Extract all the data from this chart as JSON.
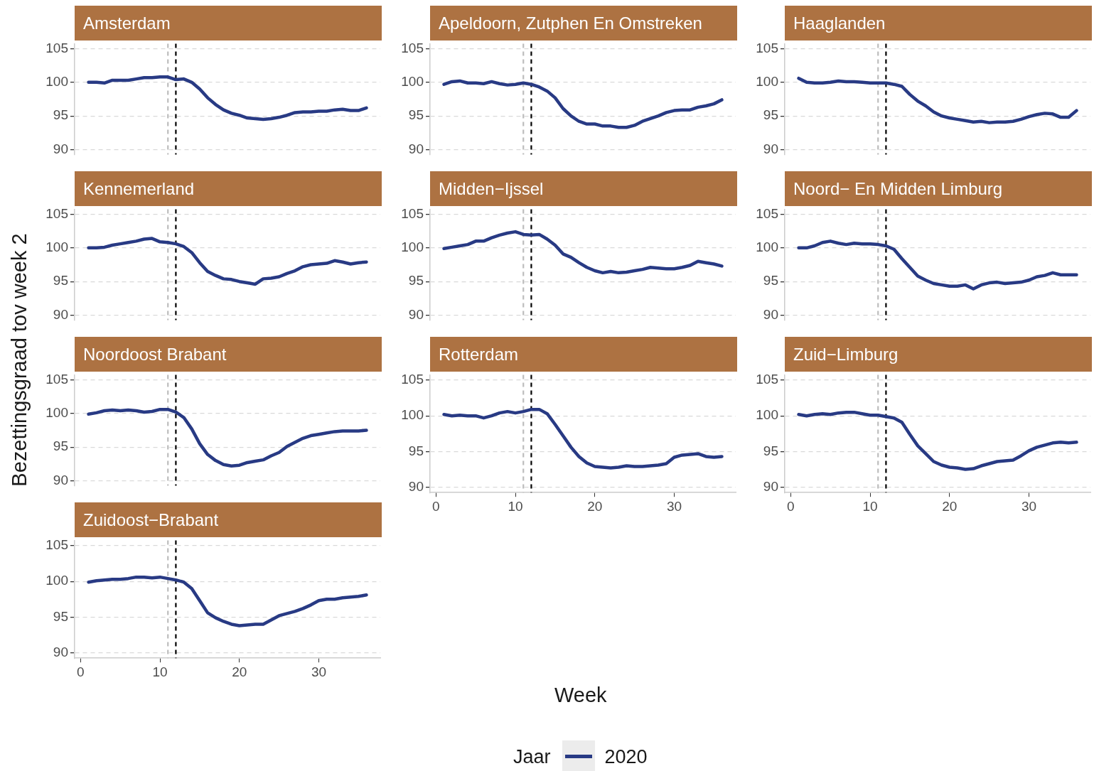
{
  "chart_data": [
    {
      "type": "line",
      "title": "Amsterdam",
      "ylabel": "Bezettingsgraad tov week 2",
      "legend_title": "Jaar",
      "legend": "bottom",
      "x": [
        1,
        2,
        3,
        4,
        5,
        6,
        7,
        8,
        9,
        10,
        11,
        12,
        13,
        14,
        15,
        16,
        17,
        18,
        19,
        20,
        21,
        22,
        23,
        24,
        25,
        26,
        27,
        28,
        29,
        30,
        31,
        32,
        33,
        34,
        35,
        36
      ],
      "xlim": [
        -0.75,
        37.75
      ],
      "xticks": [
        0,
        10,
        20,
        30
      ],
      "ylim": [
        89.25,
        105.75
      ],
      "yticks": [
        90,
        95,
        100,
        105
      ],
      "grid": "y",
      "tick_labels": "y",
      "ref_lines": [
        {
          "axis": "x",
          "value": 11,
          "color": "#bdbdbd",
          "line_style": "dashed"
        },
        {
          "axis": "x",
          "value": 12,
          "color": "#000000",
          "line_style": "dashed"
        }
      ],
      "series": [
        {
          "name": "2020",
          "color": "#283a84",
          "values": [
            100,
            100,
            99.9,
            100.3,
            100.3,
            100.3,
            100.5,
            100.7,
            100.7,
            100.8,
            100.8,
            100.4,
            100.5,
            100,
            99,
            97.7,
            96.7,
            95.9,
            95.4,
            95.1,
            94.7,
            94.6,
            94.5,
            94.6,
            94.8,
            95.1,
            95.5,
            95.6,
            95.6,
            95.7,
            95.7,
            95.9,
            96,
            95.8,
            95.8,
            96.2
          ]
        }
      ]
    },
    {
      "type": "line",
      "title": "Apeldoorn, Zutphen En Omstreken",
      "x": [
        1,
        2,
        3,
        4,
        5,
        6,
        7,
        8,
        9,
        10,
        11,
        12,
        13,
        14,
        15,
        16,
        17,
        18,
        19,
        20,
        21,
        22,
        23,
        24,
        25,
        26,
        27,
        28,
        29,
        30,
        31,
        32,
        33,
        34,
        35,
        36
      ],
      "xlim": [
        -0.75,
        37.75
      ],
      "xticks": [
        0,
        10,
        20,
        30
      ],
      "ylim": [
        89.25,
        105.75
      ],
      "yticks": [
        90,
        95,
        100,
        105
      ],
      "grid": "y",
      "tick_labels": "y",
      "ref_lines": [
        {
          "axis": "x",
          "value": 11,
          "color": "#bdbdbd",
          "line_style": "dashed"
        },
        {
          "axis": "x",
          "value": 12,
          "color": "#000000",
          "line_style": "dashed"
        }
      ],
      "series": [
        {
          "color": "#283a84",
          "values": [
            99.7,
            100.1,
            100.2,
            99.9,
            99.9,
            99.8,
            100.1,
            99.8,
            99.6,
            99.7,
            99.9,
            99.7,
            99.3,
            98.7,
            97.7,
            96.1,
            95,
            94.2,
            93.8,
            93.8,
            93.5,
            93.5,
            93.3,
            93.3,
            93.6,
            94.2,
            94.6,
            95,
            95.5,
            95.8,
            95.9,
            95.9,
            96.3,
            96.5,
            96.8,
            97.4
          ]
        }
      ]
    },
    {
      "type": "line",
      "title": "Haaglanden",
      "x": [
        1,
        2,
        3,
        4,
        5,
        6,
        7,
        8,
        9,
        10,
        11,
        12,
        13,
        14,
        15,
        16,
        17,
        18,
        19,
        20,
        21,
        22,
        23,
        24,
        25,
        26,
        27,
        28,
        29,
        30,
        31,
        32,
        33,
        34,
        35,
        36
      ],
      "xlim": [
        -0.75,
        37.75
      ],
      "xticks": [
        0,
        10,
        20,
        30
      ],
      "ylim": [
        89.25,
        105.75
      ],
      "yticks": [
        90,
        95,
        100,
        105
      ],
      "grid": "y",
      "tick_labels": "y",
      "ref_lines": [
        {
          "axis": "x",
          "value": 11,
          "color": "#bdbdbd",
          "line_style": "dashed"
        },
        {
          "axis": "x",
          "value": 12,
          "color": "#000000",
          "line_style": "dashed"
        }
      ],
      "series": [
        {
          "color": "#283a84",
          "values": [
            100.6,
            100,
            99.9,
            99.9,
            100,
            100.2,
            100.1,
            100.1,
            100,
            99.9,
            99.9,
            99.9,
            99.7,
            99.4,
            98.2,
            97.2,
            96.5,
            95.6,
            95,
            94.7,
            94.5,
            94.3,
            94.1,
            94.2,
            94,
            94.1,
            94.1,
            94.2,
            94.5,
            94.9,
            95.2,
            95.4,
            95.3,
            94.8,
            94.8,
            95.8
          ]
        }
      ]
    },
    {
      "type": "line",
      "title": "Kennemerland",
      "x": [
        1,
        2,
        3,
        4,
        5,
        6,
        7,
        8,
        9,
        10,
        11,
        12,
        13,
        14,
        15,
        16,
        17,
        18,
        19,
        20,
        21,
        22,
        23,
        24,
        25,
        26,
        27,
        28,
        29,
        30,
        31,
        32,
        33,
        34,
        35,
        36
      ],
      "xlim": [
        -0.75,
        37.75
      ],
      "xticks": [
        0,
        10,
        20,
        30
      ],
      "ylim": [
        89.25,
        105.75
      ],
      "yticks": [
        90,
        95,
        100,
        105
      ],
      "grid": "y",
      "tick_labels": "y",
      "ref_lines": [
        {
          "axis": "x",
          "value": 11,
          "color": "#bdbdbd",
          "line_style": "dashed"
        },
        {
          "axis": "x",
          "value": 12,
          "color": "#000000",
          "line_style": "dashed"
        }
      ],
      "series": [
        {
          "color": "#283a84",
          "values": [
            100,
            100,
            100.1,
            100.4,
            100.6,
            100.8,
            101,
            101.3,
            101.4,
            100.9,
            100.8,
            100.6,
            100.2,
            99.3,
            97.8,
            96.5,
            95.9,
            95.4,
            95.3,
            95,
            94.8,
            94.6,
            95.4,
            95.5,
            95.7,
            96.2,
            96.6,
            97.2,
            97.5,
            97.6,
            97.7,
            98.1,
            97.9,
            97.6,
            97.8,
            97.9
          ]
        }
      ]
    },
    {
      "type": "line",
      "title": "Midden−Ijssel",
      "x": [
        1,
        2,
        3,
        4,
        5,
        6,
        7,
        8,
        9,
        10,
        11,
        12,
        13,
        14,
        15,
        16,
        17,
        18,
        19,
        20,
        21,
        22,
        23,
        24,
        25,
        26,
        27,
        28,
        29,
        30,
        31,
        32,
        33,
        34,
        35,
        36
      ],
      "xlim": [
        -0.75,
        37.75
      ],
      "xticks": [
        0,
        10,
        20,
        30
      ],
      "ylim": [
        89.25,
        105.75
      ],
      "yticks": [
        90,
        95,
        100,
        105
      ],
      "grid": "y",
      "tick_labels": "y",
      "ref_lines": [
        {
          "axis": "x",
          "value": 11,
          "color": "#bdbdbd",
          "line_style": "dashed"
        },
        {
          "axis": "x",
          "value": 12,
          "color": "#000000",
          "line_style": "dashed"
        }
      ],
      "series": [
        {
          "color": "#283a84",
          "values": [
            99.9,
            100.1,
            100.3,
            100.5,
            101,
            101,
            101.5,
            101.9,
            102.2,
            102.4,
            102,
            101.9,
            102,
            101.3,
            100.4,
            99.1,
            98.6,
            97.8,
            97.1,
            96.6,
            96.3,
            96.5,
            96.3,
            96.4,
            96.6,
            96.8,
            97.1,
            97,
            96.9,
            96.9,
            97.1,
            97.4,
            98,
            97.8,
            97.6,
            97.3
          ]
        }
      ]
    },
    {
      "type": "line",
      "title": "Noord− En Midden Limburg",
      "x": [
        1,
        2,
        3,
        4,
        5,
        6,
        7,
        8,
        9,
        10,
        11,
        12,
        13,
        14,
        15,
        16,
        17,
        18,
        19,
        20,
        21,
        22,
        23,
        24,
        25,
        26,
        27,
        28,
        29,
        30,
        31,
        32,
        33,
        34,
        35,
        36
      ],
      "xlim": [
        -0.75,
        37.75
      ],
      "xticks": [
        0,
        10,
        20,
        30
      ],
      "ylim": [
        89.25,
        105.75
      ],
      "yticks": [
        90,
        95,
        100,
        105
      ],
      "grid": "y",
      "tick_labels": "y",
      "ref_lines": [
        {
          "axis": "x",
          "value": 11,
          "color": "#bdbdbd",
          "line_style": "dashed"
        },
        {
          "axis": "x",
          "value": 12,
          "color": "#000000",
          "line_style": "dashed"
        }
      ],
      "series": [
        {
          "color": "#283a84",
          "values": [
            100,
            100,
            100.3,
            100.8,
            101,
            100.7,
            100.5,
            100.7,
            100.6,
            100.6,
            100.5,
            100.3,
            99.8,
            98.4,
            97.1,
            95.8,
            95.2,
            94.7,
            94.5,
            94.3,
            94.3,
            94.5,
            93.9,
            94.5,
            94.8,
            94.9,
            94.7,
            94.8,
            94.9,
            95.2,
            95.7,
            95.9,
            96.3,
            96,
            96,
            96
          ]
        }
      ]
    },
    {
      "type": "line",
      "title": "Noordoost Brabant",
      "x": [
        1,
        2,
        3,
        4,
        5,
        6,
        7,
        8,
        9,
        10,
        11,
        12,
        13,
        14,
        15,
        16,
        17,
        18,
        19,
        20,
        21,
        22,
        23,
        24,
        25,
        26,
        27,
        28,
        29,
        30,
        31,
        32,
        33,
        34,
        35,
        36
      ],
      "xlim": [
        -0.75,
        37.75
      ],
      "xticks": [
        0,
        10,
        20,
        30
      ],
      "ylim": [
        89.25,
        105.75
      ],
      "yticks": [
        90,
        95,
        100,
        105
      ],
      "grid": "y",
      "tick_labels": "y",
      "ref_lines": [
        {
          "axis": "x",
          "value": 11,
          "color": "#bdbdbd",
          "line_style": "dashed"
        },
        {
          "axis": "x",
          "value": 12,
          "color": "#000000",
          "line_style": "dashed"
        }
      ],
      "series": [
        {
          "color": "#283a84",
          "values": [
            99.9,
            100.1,
            100.4,
            100.5,
            100.4,
            100.5,
            100.4,
            100.2,
            100.3,
            100.6,
            100.6,
            100.2,
            99.4,
            97.7,
            95.5,
            93.9,
            93,
            92.4,
            92.2,
            92.3,
            92.7,
            92.9,
            93.1,
            93.7,
            94.2,
            95.1,
            95.7,
            96.3,
            96.7,
            96.9,
            97.1,
            97.3,
            97.4,
            97.4,
            97.4,
            97.5
          ]
        }
      ]
    },
    {
      "type": "line",
      "title": "Rotterdam",
      "xlabel": "Week",
      "x": [
        1,
        2,
        3,
        4,
        5,
        6,
        7,
        8,
        9,
        10,
        11,
        12,
        13,
        14,
        15,
        16,
        17,
        18,
        19,
        20,
        21,
        22,
        23,
        24,
        25,
        26,
        27,
        28,
        29,
        30,
        31,
        32,
        33,
        34,
        35,
        36
      ],
      "xlim": [
        -0.75,
        37.75
      ],
      "xticks": [
        0,
        10,
        20,
        30
      ],
      "ylim": [
        89.25,
        105.75
      ],
      "yticks": [
        90,
        95,
        100,
        105
      ],
      "grid": "y",
      "ref_lines": [
        {
          "axis": "x",
          "value": 11,
          "color": "#bdbdbd",
          "line_style": "dashed"
        },
        {
          "axis": "x",
          "value": 12,
          "color": "#000000",
          "line_style": "dashed"
        }
      ],
      "series": [
        {
          "color": "#283a84",
          "values": [
            100.2,
            100,
            100.1,
            100,
            100,
            99.7,
            100,
            100.4,
            100.6,
            100.4,
            100.6,
            100.9,
            100.9,
            100.3,
            98.8,
            97.2,
            95.6,
            94.3,
            93.4,
            92.9,
            92.8,
            92.7,
            92.8,
            93,
            92.9,
            92.9,
            93,
            93.1,
            93.3,
            94.2,
            94.5,
            94.6,
            94.7,
            94.3,
            94.2,
            94.3
          ]
        }
      ]
    },
    {
      "type": "line",
      "title": "Zuid−Limburg",
      "x": [
        1,
        2,
        3,
        4,
        5,
        6,
        7,
        8,
        9,
        10,
        11,
        12,
        13,
        14,
        15,
        16,
        17,
        18,
        19,
        20,
        21,
        22,
        23,
        24,
        25,
        26,
        27,
        28,
        29,
        30,
        31,
        32,
        33,
        34,
        35,
        36
      ],
      "xlim": [
        -0.75,
        37.75
      ],
      "xticks": [
        0,
        10,
        20,
        30
      ],
      "ylim": [
        89.25,
        105.75
      ],
      "yticks": [
        90,
        95,
        100,
        105
      ],
      "grid": "y",
      "ref_lines": [
        {
          "axis": "x",
          "value": 11,
          "color": "#bdbdbd",
          "line_style": "dashed"
        },
        {
          "axis": "x",
          "value": 12,
          "color": "#000000",
          "line_style": "dashed"
        }
      ],
      "series": [
        {
          "color": "#283a84",
          "values": [
            100.2,
            100,
            100.2,
            100.3,
            100.2,
            100.4,
            100.5,
            100.5,
            100.3,
            100.1,
            100.1,
            99.9,
            99.7,
            99.1,
            97.4,
            95.8,
            94.7,
            93.6,
            93.1,
            92.8,
            92.7,
            92.5,
            92.6,
            93,
            93.3,
            93.6,
            93.7,
            93.8,
            94.4,
            95.1,
            95.6,
            95.9,
            96.2,
            96.3,
            96.2,
            96.3
          ]
        }
      ]
    },
    {
      "type": "line",
      "title": "Zuidoost−Brabant",
      "x": [
        1,
        2,
        3,
        4,
        5,
        6,
        7,
        8,
        9,
        10,
        11,
        12,
        13,
        14,
        15,
        16,
        17,
        18,
        19,
        20,
        21,
        22,
        23,
        24,
        25,
        26,
        27,
        28,
        29,
        30,
        31,
        32,
        33,
        34,
        35,
        36
      ],
      "xlim": [
        -0.75,
        37.75
      ],
      "xticks": [
        0,
        10,
        20,
        30
      ],
      "ylim": [
        89.25,
        105.75
      ],
      "yticks": [
        90,
        95,
        100,
        105
      ],
      "grid": "y",
      "ref_lines": [
        {
          "axis": "x",
          "value": 11,
          "color": "#bdbdbd",
          "line_style": "dashed"
        },
        {
          "axis": "x",
          "value": 12,
          "color": "#000000",
          "line_style": "dashed"
        }
      ],
      "series": [
        {
          "color": "#283a84",
          "values": [
            99.9,
            100.1,
            100.2,
            100.3,
            100.3,
            100.4,
            100.6,
            100.6,
            100.5,
            100.6,
            100.4,
            100.2,
            99.9,
            99,
            97.3,
            95.6,
            94.9,
            94.4,
            94,
            93.8,
            93.9,
            94,
            94,
            94.6,
            95.2,
            95.5,
            95.8,
            96.2,
            96.7,
            97.3,
            97.5,
            97.5,
            97.7,
            97.8,
            97.9,
            98.1
          ]
        }
      ]
    }
  ]
}
